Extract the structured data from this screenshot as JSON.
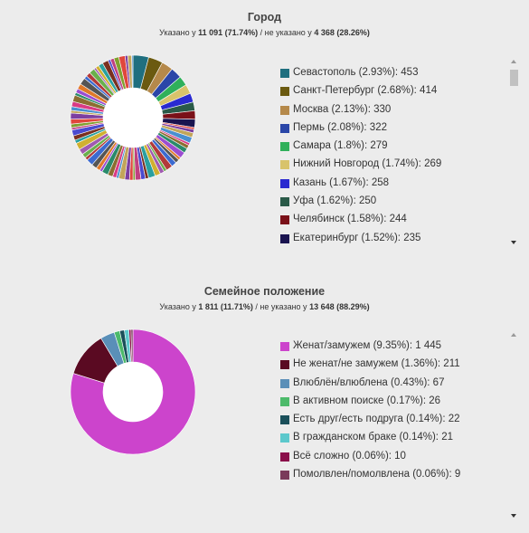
{
  "city": {
    "title": "Город",
    "specified_prefix": "Указано у ",
    "specified_value": "11 091 (71.74%)",
    "not_specified_prefix": " / не указано у ",
    "not_specified_value": "4 368 (28.26%)",
    "legend": [
      {
        "label": "Севастополь (2.93%): 453",
        "color": "#1f6f7f"
      },
      {
        "label": "Санкт-Петербург (2.68%): 414",
        "color": "#6b5a10"
      },
      {
        "label": "Москва (2.13%): 330",
        "color": "#b5894a"
      },
      {
        "label": "Пермь (2.08%): 322",
        "color": "#2a46a8"
      },
      {
        "label": "Самара (1.8%): 279",
        "color": "#2fb05a"
      },
      {
        "label": "Нижний Новгород (1.74%): 269",
        "color": "#d8c36b"
      },
      {
        "label": "Казань (1.67%): 258",
        "color": "#2a2ad0"
      },
      {
        "label": "Уфа (1.62%): 250",
        "color": "#2a5a48"
      },
      {
        "label": "Челябинск (1.58%): 244",
        "color": "#7a1018"
      },
      {
        "label": "Екатеринбург (1.52%): 235",
        "color": "#1a1450"
      }
    ],
    "chart_data": {
      "type": "pie",
      "values": [
        453,
        414,
        330,
        322,
        279,
        269,
        258,
        250,
        244,
        235
      ],
      "colors": [
        "#1f6f7f",
        "#6b5a10",
        "#b5894a",
        "#2a46a8",
        "#2fb05a",
        "#d8c36b",
        "#2a2ad0",
        "#2a5a48",
        "#7a1018",
        "#1a1450"
      ],
      "other_total": 8037,
      "other_colors": [
        "#e0473c",
        "#7d3fa0",
        "#c2a55a",
        "#4a8fd0",
        "#d93b84",
        "#8c6d30",
        "#2a8a6a",
        "#9b4dd0",
        "#e07a2a",
        "#555555",
        "#3c6ad0",
        "#b23a3a",
        "#6ab04c",
        "#a05ab0",
        "#d0b030",
        "#2aa0a0",
        "#7a3020",
        "#4a4ad0",
        "#c04080",
        "#80a030"
      ]
    }
  },
  "family": {
    "title": "Семейное положение",
    "specified_prefix": "Указано у ",
    "specified_value": "1 811 (11.71%)",
    "not_specified_prefix": " / не указано у ",
    "not_specified_value": "13 648 (88.29%)",
    "legend": [
      {
        "label": "Женат/замужем (9.35%): 1 445",
        "color": "#cc44cc"
      },
      {
        "label": "Не женат/не замужем (1.36%): 211",
        "color": "#5a0a22"
      },
      {
        "label": "Влюблён/влюблена (0.43%): 67",
        "color": "#5a8fb8"
      },
      {
        "label": "В активном поиске (0.17%): 26",
        "color": "#4cba6a"
      },
      {
        "label": "Есть друг/есть подруга (0.14%): 22",
        "color": "#1a4f5a"
      },
      {
        "label": "В гражданском браке (0.14%): 21",
        "color": "#5cc8cc"
      },
      {
        "label": "Всё сложно (0.06%): 10",
        "color": "#8a0f4a"
      },
      {
        "label": "Помолвлен/помолвлена (0.06%): 9",
        "color": "#7a3a5a"
      }
    ],
    "chart_data": {
      "type": "pie",
      "values": [
        1445,
        211,
        67,
        26,
        22,
        21,
        10,
        9
      ],
      "colors": [
        "#cc44cc",
        "#5a0a22",
        "#5a8fb8",
        "#4cba6a",
        "#1a4f5a",
        "#5cc8cc",
        "#8a0f4a",
        "#7a3a5a"
      ]
    }
  }
}
